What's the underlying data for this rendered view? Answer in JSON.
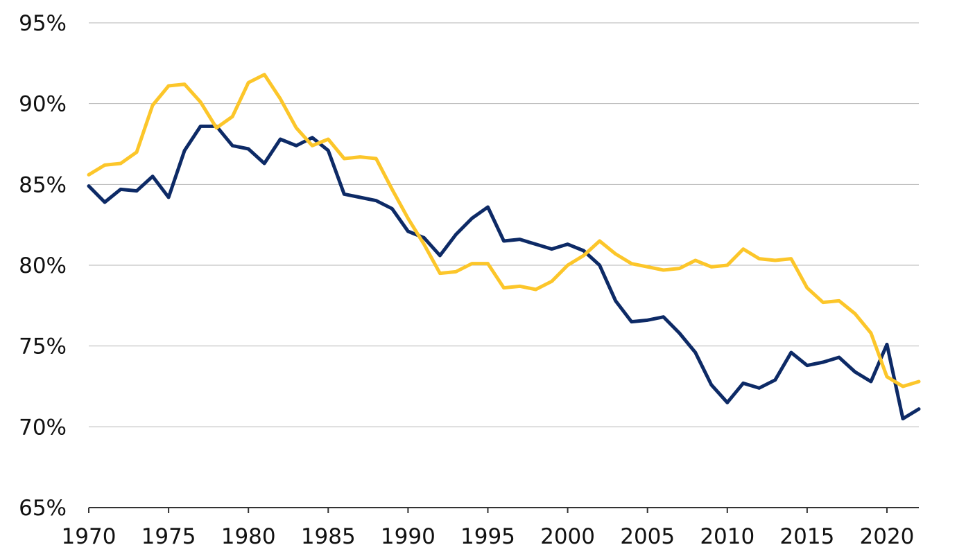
{
  "chart_data": {
    "type": "line",
    "title": "",
    "xlabel": "",
    "ylabel": "",
    "xlim": [
      1970,
      2022
    ],
    "ylim": [
      65,
      95
    ],
    "grid": true,
    "x_ticks": [
      1970,
      1975,
      1980,
      1985,
      1990,
      1995,
      2000,
      2005,
      2010,
      2015,
      2020
    ],
    "x_tick_labels": [
      "1970",
      "1975",
      "1980",
      "1985",
      "1990",
      "1995",
      "2000",
      "2005",
      "2010",
      "2015",
      "2020"
    ],
    "y_ticks": [
      65,
      70,
      75,
      80,
      85,
      90,
      95
    ],
    "y_tick_labels": [
      "65%",
      "70%",
      "75%",
      "80%",
      "85%",
      "90%",
      "95%"
    ],
    "x": [
      1970,
      1971,
      1972,
      1973,
      1974,
      1975,
      1976,
      1977,
      1978,
      1979,
      1980,
      1981,
      1982,
      1983,
      1984,
      1985,
      1986,
      1987,
      1988,
      1989,
      1990,
      1991,
      1992,
      1993,
      1994,
      1995,
      1996,
      1997,
      1998,
      1999,
      2000,
      2001,
      2002,
      2003,
      2004,
      2005,
      2006,
      2007,
      2008,
      2009,
      2010,
      2011,
      2012,
      2013,
      2014,
      2015,
      2016,
      2017,
      2018,
      2019,
      2020,
      2021,
      2022
    ],
    "series": [
      {
        "color": "#0d2a66",
        "values": [
          84.9,
          83.9,
          84.7,
          84.6,
          85.5,
          84.2,
          87.1,
          88.6,
          88.6,
          87.4,
          87.2,
          86.3,
          87.8,
          87.4,
          87.9,
          87.1,
          84.4,
          84.2,
          84.0,
          83.5,
          82.1,
          81.7,
          80.6,
          81.9,
          82.9,
          83.6,
          81.5,
          81.6,
          81.3,
          81.0,
          81.3,
          80.9,
          80.0,
          77.8,
          76.5,
          76.6,
          76.8,
          75.8,
          74.6,
          72.6,
          71.5,
          72.7,
          72.4,
          72.9,
          74.6,
          73.8,
          74.0,
          74.3,
          73.4,
          72.8,
          75.1,
          70.5,
          71.1
        ]
      },
      {
        "color": "#fcc62a",
        "values": [
          85.6,
          86.2,
          86.3,
          87.0,
          89.9,
          91.1,
          91.2,
          90.1,
          88.5,
          89.2,
          91.3,
          91.8,
          90.3,
          88.5,
          87.4,
          87.8,
          86.6,
          86.7,
          86.6,
          84.7,
          82.9,
          81.3,
          79.5,
          79.6,
          80.1,
          80.1,
          78.6,
          78.7,
          78.5,
          79.0,
          80.0,
          80.6,
          81.5,
          80.7,
          80.1,
          79.9,
          79.7,
          79.8,
          80.3,
          79.9,
          80.0,
          81.0,
          80.4,
          80.3,
          80.4,
          78.6,
          77.7,
          77.8,
          77.0,
          75.8,
          73.1,
          72.5,
          72.8
        ]
      }
    ]
  }
}
